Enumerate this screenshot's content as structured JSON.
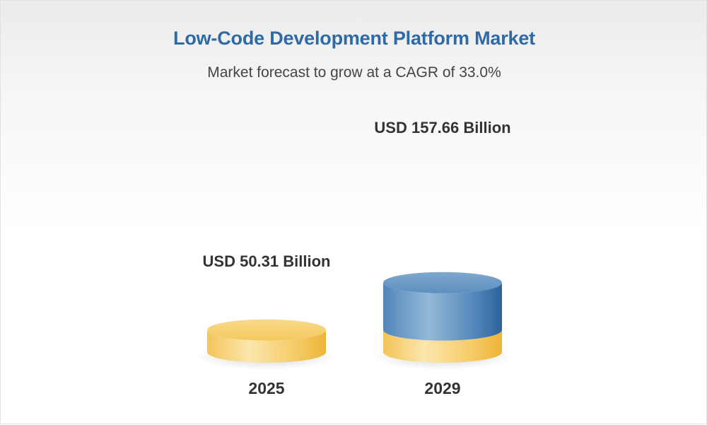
{
  "header": {
    "title": "Low-Code Development Platform Market",
    "subtitle": "Market forecast to grow at a CAGR of 33.0%"
  },
  "colors": {
    "title": "#2e6aa5",
    "base_light": "#fbe3a4",
    "base_mid": "#f6cf6e",
    "base_dark": "#efb840",
    "growth_light": "#93b7d6",
    "growth_mid": "#5b8fc0",
    "growth_dark": "#2f66a0"
  },
  "chart_data": {
    "type": "bar",
    "style": "3d-cylinder",
    "categories": [
      "2025",
      "2029"
    ],
    "values": [
      50.31,
      157.66
    ],
    "unit": "USD Billion",
    "data_labels": [
      "USD 50.31 Billion",
      "USD 157.66 Billion"
    ],
    "title": "Low-Code Development Platform Market",
    "subtitle": "Market forecast to grow at a CAGR of 33.0%",
    "xlabel": "",
    "ylabel": "",
    "grid": false,
    "legend": "none",
    "growth_segment_2029": 107.35
  }
}
